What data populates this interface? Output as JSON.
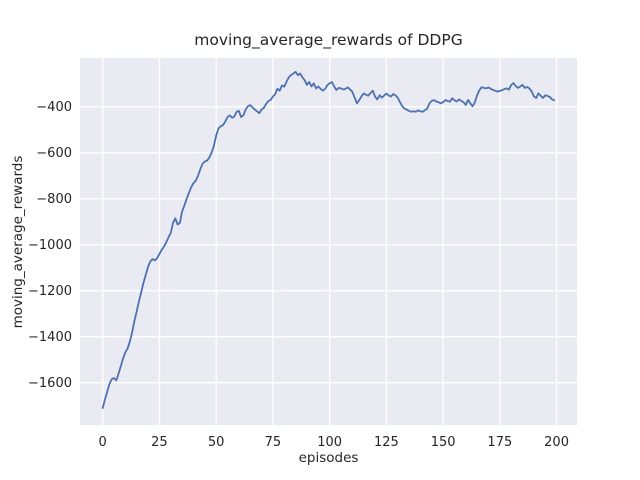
{
  "figure": {
    "title": "moving_average_rewards of DDPG",
    "xlabel": "episodes",
    "ylabel": "moving_average_rewards"
  },
  "colors": {
    "figure_background": "#ffffff",
    "axes_background": "#eaeaf2",
    "gridline": "#ffffff",
    "line": "#4c72b0",
    "text": "#262626"
  },
  "chart_data": {
    "type": "line",
    "title": "moving_average_rewards of DDPG",
    "xlabel": "episodes",
    "ylabel": "moving_average_rewards",
    "legend": null,
    "grid": true,
    "series_name": "moving average reward",
    "x_start": 0,
    "x_step": 1,
    "xlim": [
      -10,
      209
    ],
    "ylim": [
      -1784,
      -188
    ],
    "xticks": [
      0,
      25,
      50,
      75,
      100,
      125,
      150,
      175,
      200
    ],
    "yticks": [
      -400,
      -600,
      -800,
      -1000,
      -1200,
      -1400,
      -1600
    ],
    "values": [
      -1710,
      -1672,
      -1640,
      -1605,
      -1585,
      -1580,
      -1590,
      -1560,
      -1528,
      -1495,
      -1468,
      -1450,
      -1420,
      -1380,
      -1330,
      -1290,
      -1245,
      -1205,
      -1165,
      -1130,
      -1095,
      -1072,
      -1062,
      -1068,
      -1058,
      -1040,
      -1022,
      -1008,
      -990,
      -968,
      -948,
      -905,
      -885,
      -912,
      -905,
      -855,
      -830,
      -800,
      -775,
      -750,
      -732,
      -722,
      -700,
      -672,
      -648,
      -638,
      -634,
      -620,
      -600,
      -570,
      -525,
      -495,
      -485,
      -480,
      -465,
      -445,
      -437,
      -448,
      -443,
      -422,
      -418,
      -445,
      -437,
      -412,
      -398,
      -393,
      -403,
      -412,
      -420,
      -428,
      -412,
      -405,
      -388,
      -375,
      -370,
      -356,
      -345,
      -322,
      -330,
      -307,
      -313,
      -292,
      -272,
      -262,
      -256,
      -248,
      -263,
      -255,
      -272,
      -285,
      -305,
      -292,
      -312,
      -298,
      -320,
      -312,
      -322,
      -330,
      -322,
      -306,
      -298,
      -293,
      -312,
      -327,
      -318,
      -320,
      -325,
      -322,
      -316,
      -325,
      -335,
      -360,
      -385,
      -372,
      -355,
      -342,
      -348,
      -352,
      -340,
      -330,
      -355,
      -368,
      -350,
      -360,
      -352,
      -343,
      -350,
      -356,
      -345,
      -350,
      -360,
      -380,
      -398,
      -408,
      -413,
      -418,
      -422,
      -420,
      -422,
      -416,
      -420,
      -422,
      -415,
      -408,
      -385,
      -374,
      -371,
      -377,
      -380,
      -385,
      -380,
      -371,
      -375,
      -378,
      -363,
      -372,
      -377,
      -368,
      -375,
      -380,
      -392,
      -370,
      -385,
      -398,
      -380,
      -350,
      -328,
      -315,
      -318,
      -320,
      -316,
      -322,
      -327,
      -330,
      -334,
      -331,
      -328,
      -323,
      -320,
      -326,
      -305,
      -297,
      -310,
      -318,
      -312,
      -305,
      -318,
      -314,
      -320,
      -333,
      -355,
      -362,
      -342,
      -352,
      -362,
      -350,
      -353,
      -357,
      -368,
      -372
    ]
  }
}
